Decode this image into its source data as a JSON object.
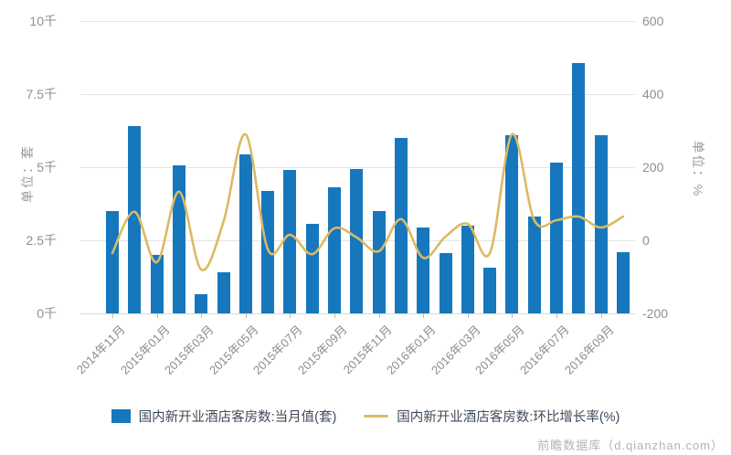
{
  "watermark": "前瞻数据库（d.qianzhan.com）",
  "legend": [
    {
      "label": "国内新开业酒店客房数:当月值(套)",
      "type": "bar",
      "color": "#1677bd"
    },
    {
      "label": "国内新开业酒店客房数:环比增长率(%)",
      "type": "line",
      "color": "#dcb964"
    }
  ],
  "colors": {
    "bar": "#1677bd",
    "line": "#dcb964",
    "grid": "#e4e4e4",
    "tick_text": "#8f8f8f"
  },
  "chart_data": {
    "type": "bar",
    "title": "",
    "categories": [
      "2014年11月",
      "2014年12月",
      "2015年01月",
      "2015年02月",
      "2015年03月",
      "2015年04月",
      "2015年05月",
      "2015年06月",
      "2015年07月",
      "2015年08月",
      "2015年09月",
      "2015年10月",
      "2015年11月",
      "2015年12月",
      "2016年01月",
      "2016年02月",
      "2016年03月",
      "2016年04月",
      "2016年05月",
      "2016年06月",
      "2016年07月",
      "2016年08月",
      "2016年09月",
      "2016年10月"
    ],
    "x_tick_labels": [
      "2014年11月",
      "2015年01月",
      "2015年03月",
      "2015年05月",
      "2015年07月",
      "2015年09月",
      "2015年11月",
      "2016年01月",
      "2016年03月",
      "2016年05月",
      "2016年07月",
      "2016年09月"
    ],
    "series": [
      {
        "name": "国内新开业酒店客房数:当月值(套)",
        "type": "bar",
        "axis": "left",
        "values": [
          3500,
          6400,
          2000,
          5050,
          650,
          1400,
          5450,
          4200,
          4900,
          3050,
          4300,
          4950,
          3500,
          6000,
          2950,
          2050,
          3000,
          1550,
          6100,
          3300,
          5150,
          8550,
          6100,
          2100
        ]
      },
      {
        "name": "国内新开业酒店客房数:环比增长率(%)",
        "type": "line",
        "axis": "right",
        "values": [
          -35,
          78,
          -60,
          133,
          -80,
          50,
          290,
          -25,
          15,
          -38,
          33,
          8,
          -30,
          58,
          -48,
          10,
          45,
          -35,
          290,
          55,
          55,
          65,
          35,
          65
        ]
      }
    ],
    "left_axis": {
      "title": "单位：套",
      "ticks": [
        "10千",
        "7.5千",
        "5千",
        "2.5千",
        "0千"
      ],
      "range": [
        0,
        10000
      ]
    },
    "right_axis": {
      "title": "单位：%",
      "ticks": [
        "600",
        "400",
        "200",
        "0",
        "-200"
      ],
      "range": [
        -200,
        600
      ]
    },
    "legend_position": "bottom",
    "grid": true
  }
}
